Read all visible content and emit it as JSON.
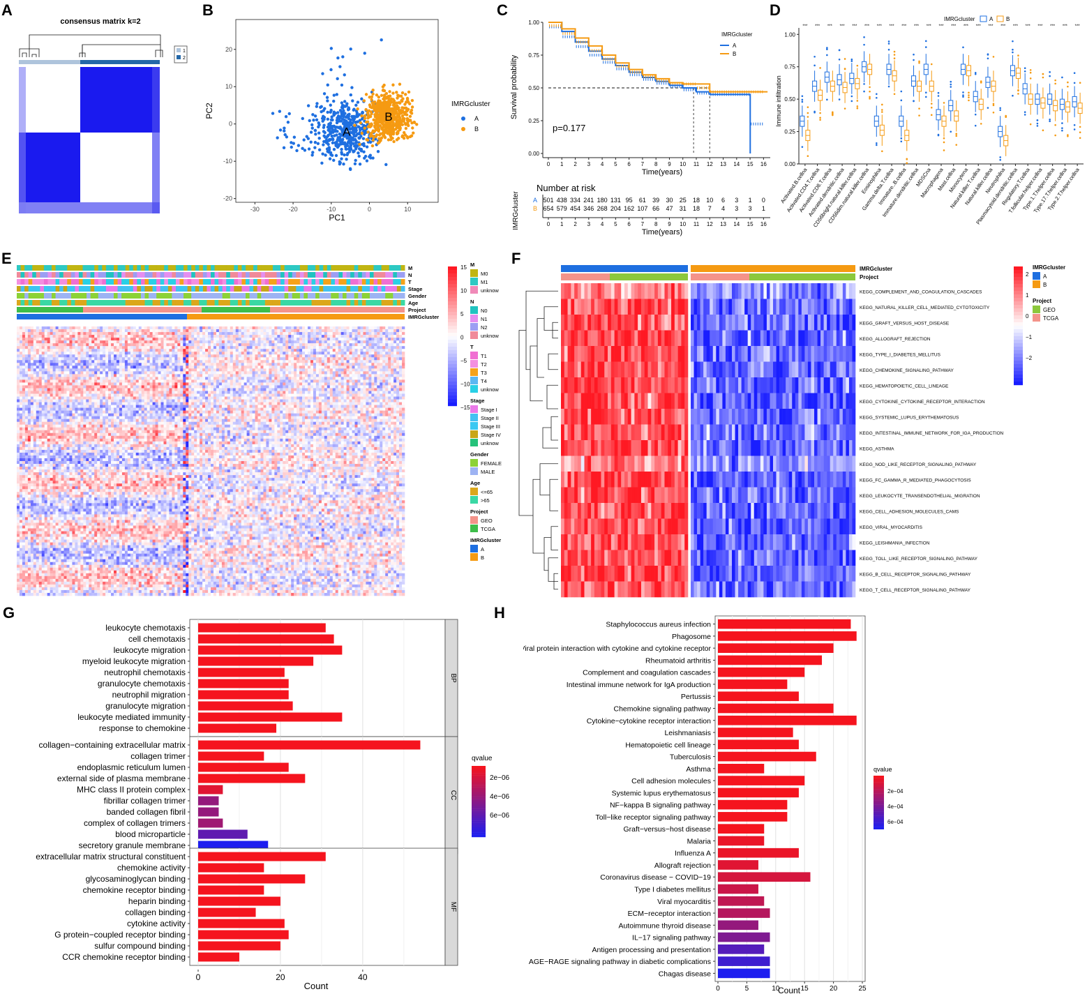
{
  "panel_labels": {
    "A": "A",
    "B": "B",
    "C": "C",
    "D": "D",
    "E": "E",
    "F": "F",
    "G": "G",
    "H": "H"
  },
  "colors": {
    "clusterA": "#1e6fe0",
    "clusterB": "#f59a12",
    "red": "#f5141e",
    "blue": "#1a1aef",
    "white": "#ffffff",
    "geo": "#f4938a",
    "tcga": "#3ebd4a"
  },
  "panelA": {
    "title": "consensus matrix k=2",
    "legend": [
      {
        "label": "1",
        "color": "#aec4dc"
      },
      {
        "label": "2",
        "color": "#2468a8"
      }
    ]
  },
  "panelB": {
    "chart_data": {
      "type": "scatter",
      "xlabel": "PC1",
      "ylabel": "PC2",
      "xlim": [
        -35,
        18
      ],
      "ylim": [
        -21,
        28
      ],
      "xticks": [
        -30,
        -20,
        -10,
        0,
        10
      ],
      "yticks": [
        -20,
        -10,
        0,
        10,
        20
      ],
      "legend_title": "IMRGcluster",
      "series": [
        {
          "name": "A",
          "color": "#1e6fe0",
          "center_label": "A",
          "center": [
            -6,
            -2
          ]
        },
        {
          "name": "B",
          "color": "#f59a12",
          "center_label": "B",
          "center": [
            5,
            2
          ]
        }
      ]
    }
  },
  "panelC": {
    "chart_data": {
      "type": "line",
      "xlabel": "Time(years)",
      "ylabel": "Survival probability",
      "xlim": [
        0,
        16.5
      ],
      "ylim": [
        0,
        1
      ],
      "xticks": [
        0,
        1,
        2,
        3,
        4,
        5,
        6,
        7,
        8,
        9,
        10,
        11,
        12,
        13,
        14,
        15,
        16
      ],
      "yticks": [
        "0.00",
        "0.25",
        "0.50",
        "0.75",
        "1.00"
      ],
      "pvalue": "p=0.177",
      "legend_title": "IMRGcluster",
      "series": [
        {
          "name": "A",
          "color": "#1e6fe0",
          "x": [
            0,
            1,
            2,
            3,
            4,
            5,
            6,
            7,
            8,
            9,
            10,
            11,
            12,
            13,
            14,
            15,
            15.01
          ],
          "y": [
            1.0,
            0.93,
            0.85,
            0.78,
            0.72,
            0.67,
            0.62,
            0.58,
            0.55,
            0.52,
            0.5,
            0.47,
            0.45,
            0.45,
            0.45,
            0.45,
            0.0
          ]
        },
        {
          "name": "B",
          "color": "#f59a12",
          "x": [
            0,
            1,
            2,
            3,
            4,
            5,
            6,
            7,
            8,
            9,
            10,
            11,
            12,
            13,
            14,
            15,
            16.3
          ],
          "y": [
            1.0,
            0.95,
            0.88,
            0.82,
            0.75,
            0.69,
            0.64,
            0.6,
            0.57,
            0.54,
            0.53,
            0.53,
            0.47,
            0.47,
            0.47,
            0.47,
            0.47
          ]
        }
      ],
      "risk_table": {
        "title": "Number at risk",
        "row_label": "IMRGcluster",
        "rows": [
          {
            "name": "A",
            "values": [
              "501",
              "438",
              "334",
              "241",
              "180",
              "131",
              "95",
              "61",
              "39",
              "30",
              "25",
              "18",
              "10",
              "6",
              "3",
              "1",
              "0"
            ]
          },
          {
            "name": "B",
            "values": [
              "654",
              "579",
              "454",
              "346",
              "268",
              "204",
              "162",
              "107",
              "66",
              "47",
              "31",
              "18",
              "7",
              "4",
              "3",
              "3",
              "1"
            ]
          }
        ]
      }
    }
  },
  "panelD": {
    "chart_data": {
      "type": "box",
      "ylabel": "Immune infiltration",
      "ylim": [
        0,
        1.05
      ],
      "yticks": [
        "0.00",
        "0.25",
        "0.50",
        "0.75",
        "1.00"
      ],
      "legend_title": "IMRGcluster",
      "legend": [
        "A",
        "B"
      ],
      "sig": "***",
      "categories": [
        "Activated B cell",
        "Activated CD4 T cell",
        "Activated CD8 T cell",
        "Activated dendritic cell",
        "CD56bright natural killer cell",
        "CD56dim natural killer cell",
        "Eosinophil",
        "Gamma delta T cell",
        "Immature B cell",
        "Immature dendritic cell",
        "MDSC",
        "Macrophage",
        "Mast cell",
        "Monocyte",
        "Natural killer T cell",
        "Natural killer cell",
        "Neutrophil",
        "Plasmacytoid dendritic cell",
        "Regulatory T cell",
        "T follicular helper cell",
        "Type 1 T helper cell",
        "Type 17 T helper cell",
        "Type 2 T helper cell"
      ],
      "tick_labels": [
        "Activated.B.cellna",
        "Activated.CD4.T.cellna",
        "Activated.CD8.T.cellna",
        "Activated.dendritic.cellna",
        "CD56bright.natural.killer.cellna",
        "CD56dim.natural.killer.cellna",
        "Eosinophilna",
        "Gamma.delta.T.cellna",
        "Immature..B.cellna",
        "Immature.dendritic.cellna",
        "MDSCna",
        "Macrophagena",
        "Mast.cellna",
        "Monocytena",
        "Natural.killer.T.cellna",
        "Natural.killer.cellna",
        "Neutrophilna",
        "Plasmacytoid.dendritic.cellna",
        "Regulatory.T.cellna",
        "T.follicular.helper.cellna",
        "Type.1.T.helper.cellna",
        "Type.17.T.helper.cellna",
        "Type.2.T.helper.cellna"
      ],
      "medianA": [
        0.33,
        0.6,
        0.67,
        0.65,
        0.66,
        0.75,
        0.33,
        0.73,
        0.33,
        0.64,
        0.73,
        0.38,
        0.45,
        0.73,
        0.52,
        0.63,
        0.25,
        0.72,
        0.58,
        0.5,
        0.5,
        0.46,
        0.48
      ],
      "medianB": [
        0.22,
        0.53,
        0.6,
        0.59,
        0.62,
        0.73,
        0.26,
        0.68,
        0.22,
        0.6,
        0.6,
        0.33,
        0.37,
        0.72,
        0.46,
        0.6,
        0.18,
        0.7,
        0.5,
        0.47,
        0.45,
        0.44,
        0.43
      ]
    }
  },
  "panelE": {
    "ann_labels": [
      "M",
      "N",
      "T",
      "Stage",
      "Gender",
      "Age",
      "Project",
      "IMRGcluster"
    ],
    "scale_ticks": [
      "15",
      "10",
      "5",
      "0",
      "−5",
      "−10",
      "−15"
    ],
    "legend": [
      {
        "title": "M",
        "items": [
          {
            "label": "M0",
            "color": "#c1b513"
          },
          {
            "label": "M1",
            "color": "#2ec9c3"
          },
          {
            "label": "unknow",
            "color": "#f08ab8"
          }
        ]
      },
      {
        "title": "N",
        "items": [
          {
            "label": "N0",
            "color": "#20c3c0"
          },
          {
            "label": "N1",
            "color": "#e58ef0"
          },
          {
            "label": "N2",
            "color": "#9c9ef3"
          },
          {
            "label": "unknow",
            "color": "#f08a9a"
          }
        ]
      },
      {
        "title": "T",
        "items": [
          {
            "label": "T1",
            "color": "#f06fd2"
          },
          {
            "label": "T2",
            "color": "#f38fe0"
          },
          {
            "label": "T3",
            "color": "#f5a21a"
          },
          {
            "label": "T4",
            "color": "#5bb7f2"
          },
          {
            "label": "unknow",
            "color": "#29d0e6"
          }
        ]
      },
      {
        "title": "Stage",
        "items": [
          {
            "label": "Stage I",
            "color": "#ea79e8"
          },
          {
            "label": "Stage II",
            "color": "#43c1f2"
          },
          {
            "label": "Stage III",
            "color": "#3ac8f2"
          },
          {
            "label": "Stage IV",
            "color": "#c9a617"
          },
          {
            "label": "unknow",
            "color": "#25c27a"
          }
        ]
      },
      {
        "title": "Gender",
        "items": [
          {
            "label": "FEMALE",
            "color": "#8cd236"
          },
          {
            "label": "MALE",
            "color": "#9db3f3"
          }
        ]
      },
      {
        "title": "Age",
        "items": [
          {
            "label": "<=65",
            "color": "#dba71b"
          },
          {
            "label": ">65",
            "color": "#3ad8a4"
          }
        ]
      },
      {
        "title": "Project",
        "items": [
          {
            "label": "GEO",
            "color": "#f4938a"
          },
          {
            "label": "TCGA",
            "color": "#3ebd4a"
          }
        ]
      },
      {
        "title": "IMRGcluster",
        "items": [
          {
            "label": "A",
            "color": "#1e6fe0"
          },
          {
            "label": "B",
            "color": "#f59a12"
          }
        ]
      }
    ]
  },
  "panelF": {
    "ann_labels": [
      "IMRGcluster",
      "Project"
    ],
    "rows": [
      "KEGG_COMPLEMENT_AND_COAGULATION_CASCADES",
      "KEGG_NATURAL_KILLER_CELL_MEDIATED_CYTOTOXICITY",
      "KEGG_GRAFT_VERSUS_HOST_DISEASE",
      "KEGG_ALLOGRAFT_REJECTION",
      "KEGG_TYPE_I_DIABETES_MELLITUS",
      "KEGG_CHEMOKINE_SIGNALING_PATHWAY",
      "KEGG_HEMATOPOIETIC_CELL_LINEAGE",
      "KEGG_CYTOKINE_CYTOKINE_RECEPTOR_INTERACTION",
      "KEGG_SYSTEMIC_LUPUS_ERYTHEMATOSUS",
      "KEGG_INTESTINAL_IMMUNE_NETWORK_FOR_IGA_PRODUCTION",
      "KEGG_ASTHMA",
      "KEGG_NOD_LIKE_RECEPTOR_SIGNALING_PATHWAY",
      "KEGG_FC_GAMMA_R_MEDIATED_PHAGOCYTOSIS",
      "KEGG_LEUKOCYTE_TRANSENDOTHELIAL_MIGRATION",
      "KEGG_CELL_ADHESION_MOLECULES_CAMS",
      "KEGG_VIRAL_MYOCARDITIS",
      "KEGG_LEISHMANIA_INFECTION",
      "KEGG_TOLL_LIKE_RECEPTOR_SIGNALING_PATHWAY",
      "KEGG_B_CELL_RECEPTOR_SIGNALING_PATHWAY",
      "KEGG_T_CELL_RECEPTOR_SIGNALING_PATHWAY"
    ],
    "scale_ticks": [
      "2",
      "1",
      "0",
      "−1",
      "−2"
    ],
    "legend": [
      {
        "title": "IMRGcluster",
        "items": [
          {
            "label": "A",
            "color": "#1e6fe0"
          },
          {
            "label": "B",
            "color": "#f59a12"
          }
        ]
      },
      {
        "title": "Project",
        "items": [
          {
            "label": "GEO",
            "color": "#8cc83c"
          },
          {
            "label": "TCGA",
            "color": "#f4938a"
          }
        ]
      }
    ]
  },
  "panelG": {
    "chart_data": {
      "type": "bar",
      "orientation": "horizontal",
      "xlabel": "Count",
      "xlim": [
        0,
        58
      ],
      "xticks": [
        0,
        20,
        40
      ],
      "legend_title": "qvalue",
      "legend_ticks": [
        "2e−06",
        "4e−06",
        "6e−06"
      ],
      "groups": [
        {
          "name": "BP",
          "terms": [
            "leukocyte chemotaxis",
            "cell chemotaxis",
            "leukocyte migration",
            "myeloid leukocyte migration",
            "neutrophil chemotaxis",
            "granulocyte chemotaxis",
            "neutrophil migration",
            "granulocyte migration",
            "leukocyte mediated immunity",
            "response to chemokine"
          ],
          "values": [
            31,
            33,
            35,
            28,
            21,
            22,
            22,
            23,
            35,
            19
          ],
          "q": [
            0,
            0,
            0,
            0,
            0,
            0,
            0,
            0,
            0,
            0
          ]
        },
        {
          "name": "CC",
          "terms": [
            "collagen−containing extracellular matrix",
            "collagen trimer",
            "endoplasmic reticulum lumen",
            "external side of plasma membrane",
            "MHC class II protein complex",
            "fibrillar collagen trimer",
            "banded collagen fibril",
            "complex of collagen trimers",
            "blood microparticle",
            "secretory granule membrane"
          ],
          "values": [
            54,
            16,
            22,
            26,
            6,
            5,
            5,
            6,
            12,
            17
          ],
          "q": [
            0,
            0,
            0,
            0,
            0.1,
            0.45,
            0.45,
            0.4,
            0.7,
            1.0
          ]
        },
        {
          "name": "MF",
          "terms": [
            "extracellular matrix structural constituent",
            "chemokine activity",
            "glycosaminoglycan binding",
            "chemokine receptor binding",
            "heparin binding",
            "collagen binding",
            "cytokine activity",
            "G protein−coupled receptor binding",
            "sulfur compound binding",
            "CCR chemokine receptor binding"
          ],
          "values": [
            31,
            16,
            26,
            16,
            20,
            14,
            21,
            22,
            20,
            10
          ],
          "q": [
            0,
            0,
            0,
            0,
            0,
            0,
            0,
            0,
            0,
            0
          ]
        }
      ]
    }
  },
  "panelH": {
    "chart_data": {
      "type": "bar",
      "orientation": "horizontal",
      "xlabel": "Count",
      "xlim": [
        0,
        25
      ],
      "xticks": [
        0,
        5,
        10,
        15,
        20,
        25
      ],
      "legend_title": "qvalue",
      "legend_ticks": [
        "2e−04",
        "4e−04",
        "6e−04"
      ],
      "terms": [
        "Staphylococcus aureus infection",
        "Phagosome",
        "Viral protein interaction with cytokine and cytokine receptor",
        "Rheumatoid arthritis",
        "Complement and coagulation cascades",
        "Intestinal immune network for IgA production",
        "Pertussis",
        "Chemokine signaling pathway",
        "Cytokine−cytokine receptor interaction",
        "Leishmaniasis",
        "Hematopoietic cell lineage",
        "Tuberculosis",
        "Asthma",
        "Cell adhesion molecules",
        "Systemic lupus erythematosus",
        "NF−kappa B signaling pathway",
        "Toll−like receptor signaling pathway",
        "Graft−versus−host disease",
        "Malaria",
        "Influenza A",
        "Allograft rejection",
        "Coronavirus disease − COVID−19",
        "Type I diabetes mellitus",
        "Viral myocarditis",
        "ECM−receptor interaction",
        "Autoimmune thyroid disease",
        "IL−17 signaling pathway",
        "Antigen processing and presentation",
        "AGE−RAGE signaling pathway in diabetic complications",
        "Chagas disease"
      ],
      "values": [
        23,
        24,
        20,
        18,
        15,
        12,
        14,
        20,
        24,
        13,
        14,
        17,
        8,
        15,
        14,
        12,
        12,
        8,
        8,
        14,
        7,
        16,
        7,
        8,
        9,
        7,
        9,
        8,
        9,
        9
      ],
      "q": [
        0,
        0,
        0,
        0,
        0,
        0,
        0,
        0,
        0,
        0,
        0,
        0,
        0,
        0,
        0,
        0,
        0,
        0,
        0.05,
        0.05,
        0.1,
        0.15,
        0.2,
        0.25,
        0.3,
        0.45,
        0.55,
        0.75,
        0.85,
        1.0
      ]
    }
  }
}
